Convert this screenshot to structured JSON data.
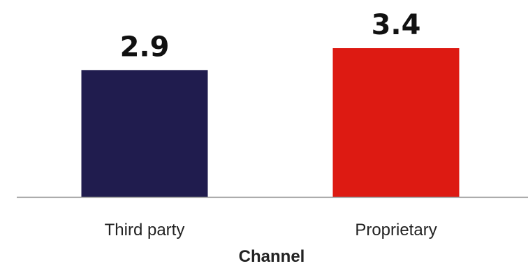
{
  "chart_data": {
    "type": "bar",
    "categories": [
      "Third party",
      "Proprietary"
    ],
    "values": [
      2.9,
      3.4
    ],
    "value_labels": [
      "2.9",
      "3.4"
    ],
    "colors": [
      "#201c4e",
      "#dd1a12"
    ],
    "axis_color": "#8a8a8a",
    "xlabel": "Channel",
    "ylabel": "",
    "ylim": [
      0,
      3.4
    ],
    "grid": false,
    "legend": "none"
  }
}
